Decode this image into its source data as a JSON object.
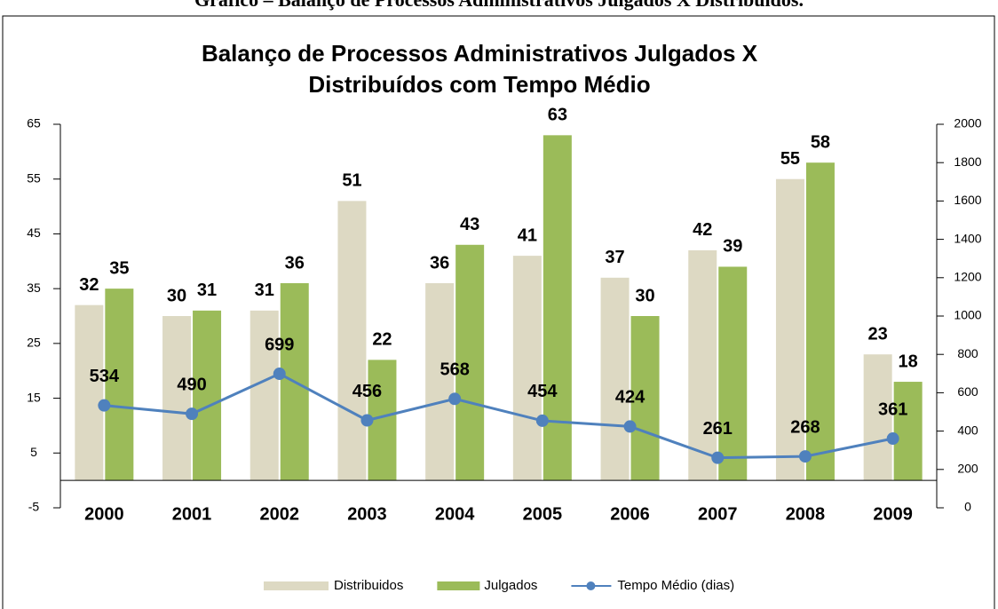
{
  "caption": "Gráfico – Balanço de Processos Administrativos Julgados X Distribuídos.",
  "chart_data": {
    "type": "bar-line",
    "title": [
      "Balanço de Processos Administrativos  Julgados X",
      "Distribuídos com Tempo Médio"
    ],
    "categories": [
      "2000",
      "2001",
      "2002",
      "2003",
      "2004",
      "2005",
      "2006",
      "2007",
      "2008",
      "2009"
    ],
    "series": [
      {
        "name": "Distribuidos",
        "color": "#ddd9c3",
        "type": "bar",
        "values": [
          32,
          30,
          31,
          51,
          36,
          41,
          37,
          42,
          55,
          23
        ]
      },
      {
        "name": "Julgados",
        "color": "#9bbb59",
        "type": "bar",
        "values": [
          35,
          31,
          36,
          22,
          43,
          63,
          30,
          39,
          58,
          18
        ]
      },
      {
        "name": "Tempo Médio (dias)",
        "color": "#4f81bd",
        "type": "line",
        "axis": "y2",
        "values": [
          534,
          490,
          699,
          456,
          568,
          454,
          424,
          261,
          268,
          361
        ]
      }
    ],
    "ylim": [
      -5,
      65
    ],
    "yticks": [
      -5,
      5,
      15,
      25,
      35,
      45,
      55,
      65
    ],
    "y2lim": [
      0,
      2000
    ],
    "y2ticks": [
      0,
      200,
      400,
      600,
      800,
      1000,
      1200,
      1400,
      1600,
      1800,
      2000
    ],
    "legend": "bottom"
  }
}
